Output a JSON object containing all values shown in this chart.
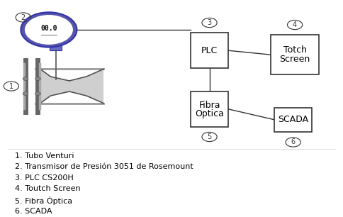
{
  "bg_color": "#ffffff",
  "legend_items": [
    "1. Tubo Venturi",
    "2. Transmisor de Presión 3051 de Rosemount",
    "3. PLC CS200H",
    "4. Toutch Screen",
    "5. Fibra Óptica",
    "6. SCADA"
  ],
  "line_color": "#333333",
  "box_edge": "#333333",
  "font_size_box": 9,
  "font_size_legend": 8,
  "font_size_num": 7
}
